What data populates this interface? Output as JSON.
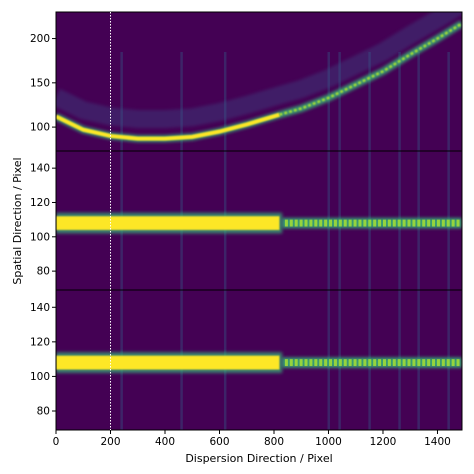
{
  "chart_data": {
    "type": "heatmap",
    "xlabel": "Dispersion Direction / Pixel",
    "ylabel": "Spatial Direction / Pixel",
    "xlim": [
      0,
      1490
    ],
    "x_ticks": [
      "0",
      "200",
      "400",
      "600",
      "800",
      "1000",
      "1200",
      "1400"
    ],
    "x_tick_values": [
      0,
      200,
      400,
      600,
      800,
      1000,
      1200,
      1400
    ],
    "vline_x": 200,
    "colormap": "viridis",
    "colors": {
      "background": "#440154",
      "trace_core": "#fde725",
      "trace_halo": "#35b779",
      "lines": "#31688e"
    },
    "panels": [
      {
        "id": "top",
        "ylim": [
          73,
          230
        ],
        "y_ticks": [
          "100",
          "150",
          "200"
        ],
        "y_tick_values": [
          100,
          150,
          200
        ],
        "trace": "curved",
        "trace_points": [
          [
            0,
            112
          ],
          [
            100,
            97
          ],
          [
            200,
            90
          ],
          [
            300,
            87
          ],
          [
            400,
            87
          ],
          [
            500,
            89
          ],
          [
            600,
            95
          ],
          [
            700,
            103
          ],
          [
            820,
            114
          ],
          [
            900,
            121
          ],
          [
            1000,
            133
          ],
          [
            1100,
            148
          ],
          [
            1200,
            163
          ],
          [
            1300,
            182
          ],
          [
            1400,
            200
          ],
          [
            1490,
            217
          ]
        ]
      },
      {
        "id": "middle",
        "ylim": [
          69,
          150
        ],
        "y_ticks": [
          "80",
          "100",
          "120",
          "140"
        ],
        "y_tick_values": [
          80,
          100,
          120,
          140
        ],
        "trace": "straight",
        "trace_center": 108
      },
      {
        "id": "bottom",
        "ylim": [
          69,
          150
        ],
        "y_ticks": [
          "80",
          "100",
          "120",
          "140"
        ],
        "y_tick_values": [
          80,
          100,
          120,
          140
        ],
        "trace": "straight",
        "trace_center": 108
      }
    ],
    "line_features_x": [
      240,
      460,
      620,
      1000,
      1040,
      1150,
      1260,
      1330,
      1440
    ]
  }
}
